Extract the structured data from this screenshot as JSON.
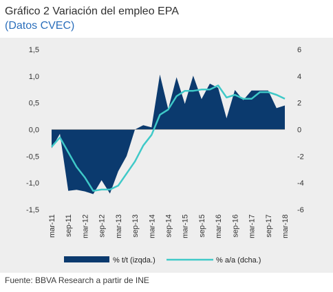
{
  "header": {
    "title": "Gráfico 2 Variación del empleo EPA",
    "subtitle": "(Datos CVEC)"
  },
  "footer": {
    "source": "Fuente: BBVA Research a partir de INE"
  },
  "colors": {
    "area": "#0b3a6e",
    "line": "#3fc9c8",
    "band": "#eeeeee"
  },
  "chart_data": {
    "type": "area",
    "x": [
      "mar-11",
      "jun-11",
      "sep-11",
      "dic-11",
      "mar-12",
      "jun-12",
      "sep-12",
      "dic-12",
      "mar-13",
      "jun-13",
      "sep-13",
      "dic-13",
      "mar-14",
      "jun-14",
      "sep-14",
      "dic-14",
      "mar-15",
      "jun-15",
      "sep-15",
      "dic-15",
      "mar-16",
      "jun-16",
      "sep-16",
      "dic-16",
      "mar-17",
      "jun-17",
      "sep-17",
      "dic-17",
      "mar-18"
    ],
    "x_tick_labels": [
      "mar-11",
      "sep-11",
      "mar-12",
      "sep-12",
      "mar-13",
      "sep-13",
      "mar-14",
      "sep-14",
      "mar-15",
      "sep-15",
      "mar-16",
      "sep-16",
      "mar-17",
      "sep-17",
      "mar-18"
    ],
    "series": [
      {
        "name": "% t/t (izqda.)",
        "type": "area",
        "axis": "left",
        "values": [
          -0.35,
          -0.08,
          -1.15,
          -1.13,
          -1.16,
          -1.21,
          -0.95,
          -1.2,
          -0.78,
          -0.5,
          0.0,
          0.08,
          0.04,
          1.03,
          0.38,
          0.98,
          0.48,
          1.01,
          0.57,
          0.86,
          0.78,
          0.21,
          0.74,
          0.55,
          0.73,
          0.73,
          0.73,
          0.4,
          0.45
        ]
      },
      {
        "name": "% a/a (dcha.)",
        "type": "line",
        "axis": "right",
        "values": [
          -1.3,
          -0.6,
          -1.7,
          -2.8,
          -3.6,
          -4.6,
          -4.5,
          -4.5,
          -4.2,
          -3.3,
          -2.4,
          -1.2,
          -0.4,
          1.1,
          1.5,
          2.5,
          2.9,
          2.9,
          3.0,
          3.0,
          3.3,
          2.4,
          2.6,
          2.3,
          2.3,
          2.8,
          2.8,
          2.6,
          2.3
        ]
      }
    ],
    "y_left": {
      "ticks": [
        "1,5",
        "1,0",
        "0,5",
        "0,0",
        "-0,5",
        "-1,0",
        "-1,5"
      ],
      "range": [
        -1.5,
        1.5
      ]
    },
    "y_right": {
      "ticks": [
        "6",
        "4",
        "2",
        "0",
        "-2",
        "-4",
        "-6"
      ],
      "range": [
        -6,
        6
      ]
    },
    "legend": [
      "% t/t (izqda.)",
      "% a/a (dcha.)"
    ],
    "legend_position": "bottom",
    "grid": false
  }
}
